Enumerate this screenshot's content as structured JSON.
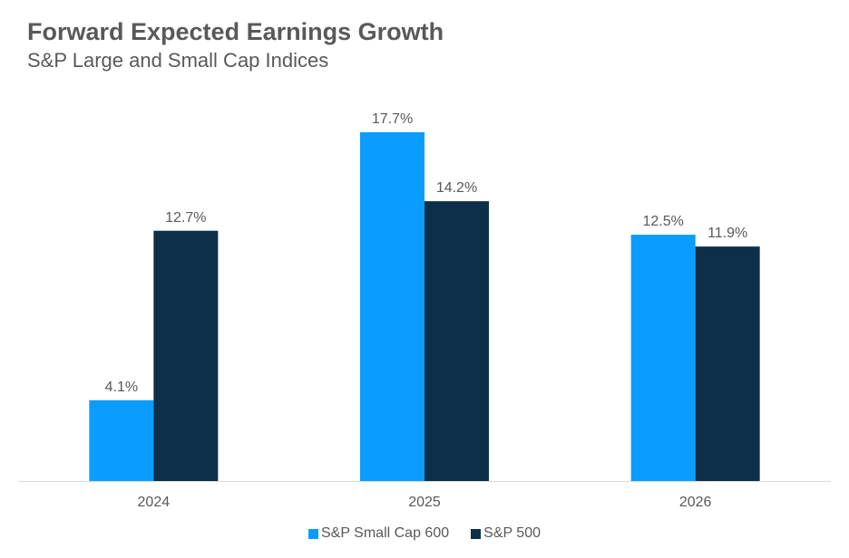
{
  "chart_data": {
    "type": "bar",
    "title": "Forward Expected Earnings Growth",
    "subtitle": "S&P Large and Small Cap Indices",
    "xlabel": "",
    "ylabel": "",
    "categories": [
      "2024",
      "2025",
      "2026"
    ],
    "series": [
      {
        "name": "S&P Small Cap 600",
        "color": "#0a9dff",
        "values": [
          4.1,
          17.7,
          12.5
        ],
        "labels": [
          "4.1%",
          "17.7%",
          "12.5%"
        ]
      },
      {
        "name": "S&P 500",
        "color": "#0d2f4a",
        "values": [
          12.7,
          14.2,
          11.9
        ],
        "labels": [
          "12.7%",
          "14.2%",
          "11.9%"
        ]
      }
    ],
    "ylim": [
      0,
      20
    ],
    "grid": false,
    "legend_position": "bottom"
  }
}
